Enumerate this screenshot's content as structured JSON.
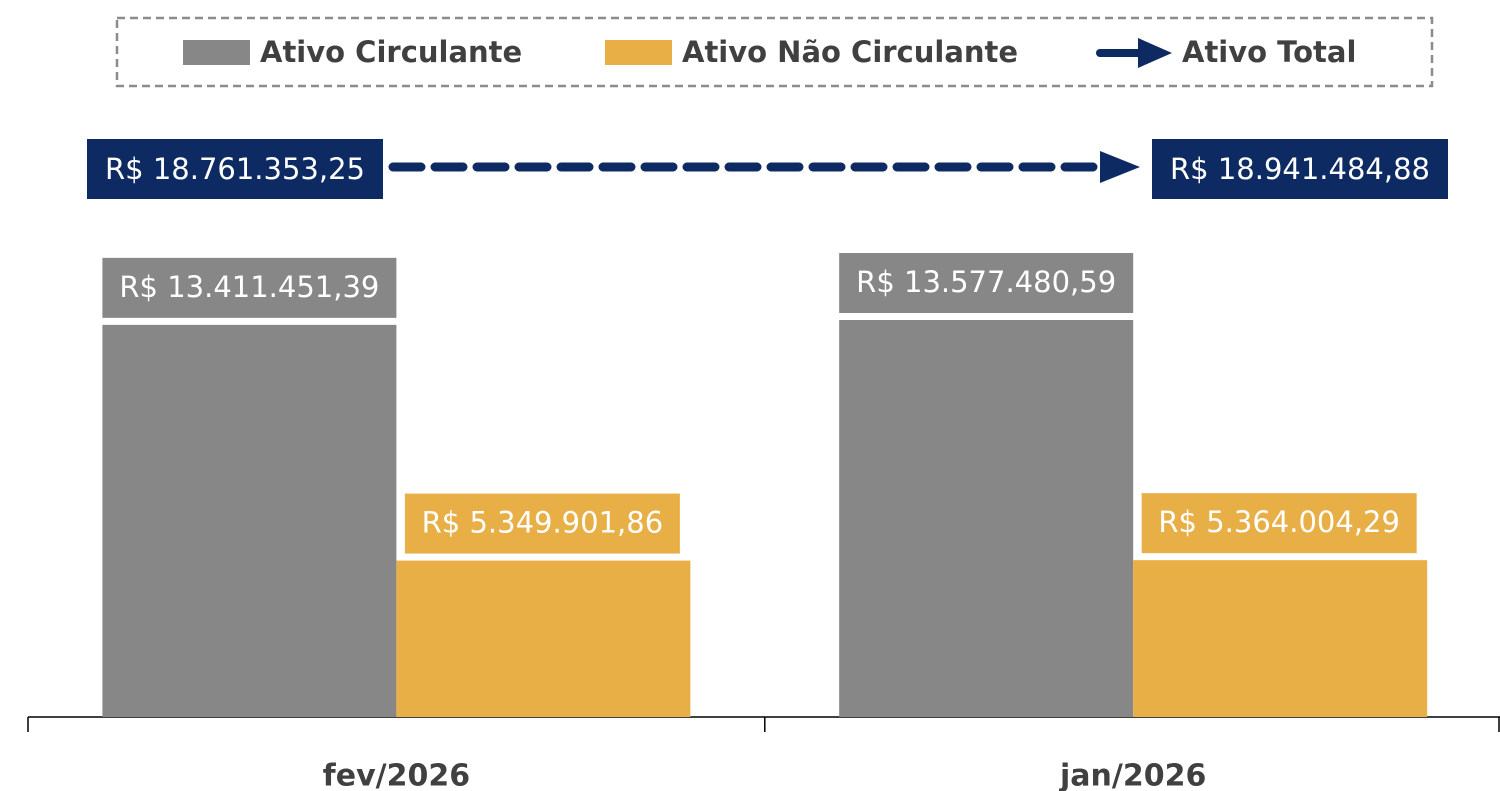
{
  "chart_data": {
    "type": "bar",
    "categories": [
      "fev/2026",
      "jan/2026"
    ],
    "series": [
      {
        "name": "Ativo Circulante",
        "color": "#878787",
        "values": [
          13411451.39,
          13577480.59
        ],
        "value_labels": [
          "R$ 13.411.451,39",
          "R$ 13.577.480,59"
        ]
      },
      {
        "name": "Ativo Não Circulante",
        "color": "#e9af47",
        "values": [
          5349901.86,
          5364004.29
        ],
        "value_labels": [
          "R$ 5.349.901,86",
          "R$ 5.364.004,29"
        ]
      },
      {
        "name": "Ativo Total",
        "type": "line",
        "axis": "y2",
        "color": "#0e2a62",
        "values": [
          18761353.25,
          18941484.88
        ],
        "value_labels": [
          "R$ 18.761.353,25",
          "R$ 18.941.484,88"
        ]
      }
    ],
    "legend": "top"
  }
}
